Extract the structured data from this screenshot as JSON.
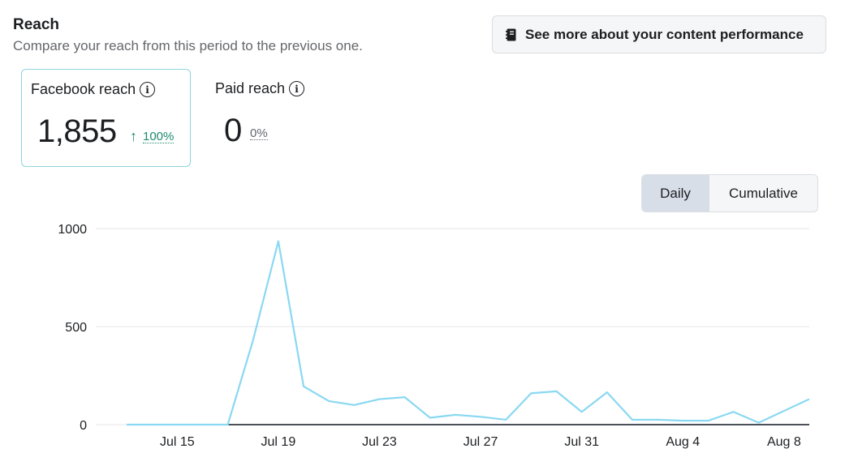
{
  "header": {
    "title": "Reach",
    "subtitle": "Compare your reach from this period to the previous one.",
    "performance_button": "See more about your content performance"
  },
  "metrics": {
    "facebook_reach": {
      "label": "Facebook reach",
      "value": "1,855",
      "delta": "100%",
      "trend": "up"
    },
    "paid_reach": {
      "label": "Paid reach",
      "value": "0",
      "delta": "0%",
      "trend": "flat"
    }
  },
  "toggle": {
    "daily_label": "Daily",
    "cumulative_label": "Cumulative",
    "selected": "Daily"
  },
  "colors": {
    "series_current": "#8ad8f2",
    "series_previous": "#4b4f56",
    "delta_up": "#1e8a6e",
    "active_border": "#8fd4dc",
    "grid": "#e4e6eb"
  },
  "chart_data": {
    "type": "line",
    "x": [
      "Jul 13",
      "Jul 14",
      "Jul 15",
      "Jul 16",
      "Jul 17",
      "Jul 18",
      "Jul 19",
      "Jul 20",
      "Jul 21",
      "Jul 22",
      "Jul 23",
      "Jul 24",
      "Jul 25",
      "Jul 26",
      "Jul 27",
      "Jul 28",
      "Jul 29",
      "Jul 30",
      "Jul 31",
      "Aug 1",
      "Aug 2",
      "Aug 3",
      "Aug 4",
      "Aug 5",
      "Aug 6",
      "Aug 7",
      "Aug 8",
      "Aug 9"
    ],
    "x_ticks": [
      "Jul 15",
      "Jul 19",
      "Jul 23",
      "Jul 27",
      "Jul 31",
      "Aug 4",
      "Aug 8"
    ],
    "y_ticks": [
      0,
      500,
      1000
    ],
    "ylim": [
      0,
      1000
    ],
    "grid": true,
    "series": [
      {
        "values": [
          0,
          0,
          0,
          0,
          0,
          430,
          935,
          195,
          120,
          100,
          130,
          140,
          35,
          50,
          40,
          25,
          160,
          170,
          65,
          165,
          25,
          25,
          20,
          20,
          65,
          10,
          70,
          130
        ]
      },
      {
        "values": [
          0,
          0,
          0,
          0,
          0,
          0,
          0,
          0,
          0,
          0,
          0,
          0,
          0,
          0,
          0,
          0,
          0,
          0,
          0,
          0,
          0,
          0,
          0,
          0,
          0,
          0,
          0,
          0
        ]
      }
    ]
  }
}
